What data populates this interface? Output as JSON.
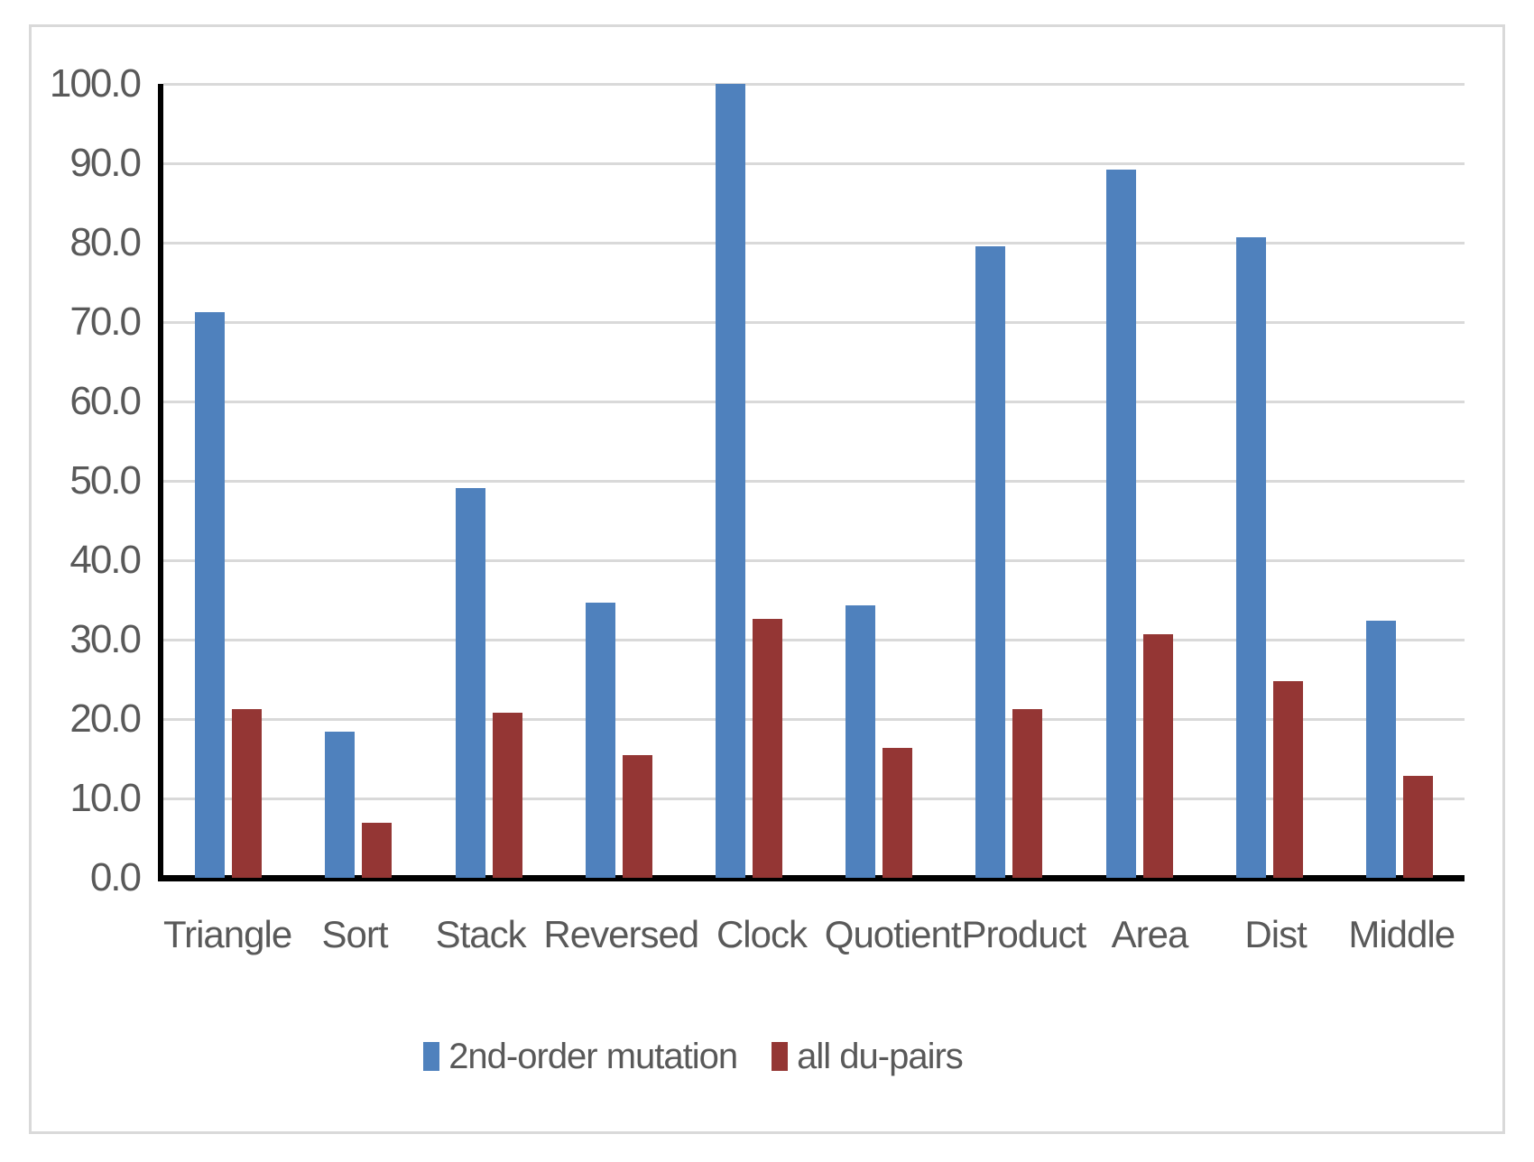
{
  "chart_data": {
    "type": "bar",
    "title": "",
    "xlabel": "",
    "ylabel": "",
    "categories": [
      "Triangle",
      "Sort",
      "Stack",
      "Reversed",
      "Clock",
      "Quotient",
      "Product",
      "Area",
      "Dist",
      "Middle"
    ],
    "series": [
      {
        "name": "2nd-order mutation",
        "color": "#4F81BD",
        "values": [
          71.3,
          18.4,
          49.1,
          34.7,
          100.0,
          34.3,
          79.6,
          89.2,
          80.7,
          32.4
        ]
      },
      {
        "name": "all du-pairs",
        "color": "#943634",
        "values": [
          21.2,
          6.9,
          20.8,
          15.5,
          32.6,
          16.4,
          21.3,
          30.7,
          24.8,
          12.8
        ]
      }
    ],
    "y_axis": {
      "min": 0,
      "max": 100,
      "tick_step": 10,
      "tick_labels": [
        "0.0",
        "10.0",
        "20.0",
        "30.0",
        "40.0",
        "50.0",
        "60.0",
        "70.0",
        "80.0",
        "90.0",
        "100.0"
      ]
    },
    "grid": true,
    "legend_position": "bottom-center",
    "colors": {
      "gridline": "#d9d9d9",
      "axis": "#000000",
      "text": "#595959",
      "frame_border": "#d9d9d9"
    }
  }
}
